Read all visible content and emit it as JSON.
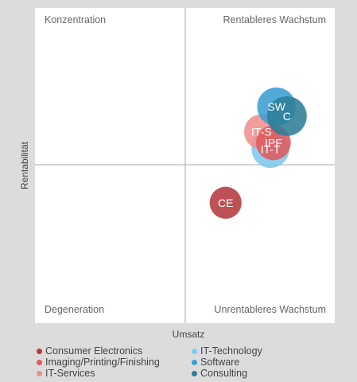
{
  "chart_data": {
    "type": "bubble",
    "xlabel": "Umsatz",
    "ylabel": "Rentabilität",
    "quadrants": {
      "top_left": "Konzentration",
      "top_right": "Rentableres Wachstum",
      "bottom_left": "Degeneration",
      "bottom_right": "Unrentableres Wachstum"
    },
    "xlim": [
      -1,
      1
    ],
    "ylim": [
      -1,
      1
    ],
    "grid": false,
    "legend_position": "bottom",
    "series": [
      {
        "name": "Consumer Electronics",
        "label": "CE",
        "x": 0.27,
        "y": -0.24,
        "size": 0.45,
        "color": "#b5393f"
      },
      {
        "name": "Imaging/Printing/Finishing",
        "label": "IPF",
        "x": 0.59,
        "y": 0.14,
        "size": 0.55,
        "color": "#e05a5f"
      },
      {
        "name": "IT-Services",
        "label": "IT-S",
        "x": 0.51,
        "y": 0.21,
        "size": 0.55,
        "color": "#f09090"
      },
      {
        "name": "IT-Technology",
        "label": "IT-T",
        "x": 0.57,
        "y": 0.1,
        "size": 0.65,
        "color": "#7ec8ec"
      },
      {
        "name": "Software",
        "label": "SW",
        "x": 0.61,
        "y": 0.37,
        "size": 0.68,
        "color": "#3b9ed4"
      },
      {
        "name": "Consulting",
        "label": "C",
        "x": 0.68,
        "y": 0.31,
        "size": 0.72,
        "color": "#2e7e98"
      }
    ]
  }
}
